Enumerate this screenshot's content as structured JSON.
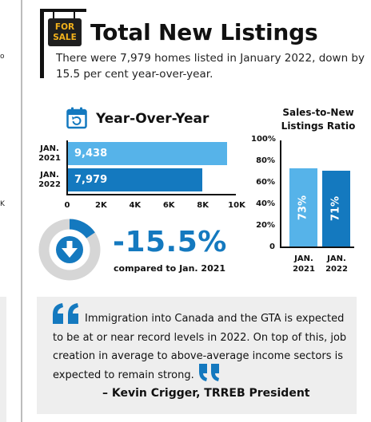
{
  "left_column": {
    "fragment_1": "o",
    "fragment_2": "K"
  },
  "header": {
    "sign_text_line1": "FOR",
    "sign_text_line2": "SALE",
    "title": "Total New Listings",
    "subtitle": "There were 7,979 homes listed in January 2022, down by 15.5 per cent year-over-year."
  },
  "yoy": {
    "title": "Year-Over-Year",
    "change_value": "-15.5%",
    "change_caption": "compared to Jan. 2021"
  },
  "colors": {
    "light_blue": "#56b3e9",
    "dark_blue": "#1479bf",
    "grey": "#d6d6d6"
  },
  "chart_data": [
    {
      "type": "bar",
      "orientation": "horizontal",
      "categories": [
        [
          "JAN.",
          "2021"
        ],
        [
          "JAN.",
          "2022"
        ]
      ],
      "values": [
        9438,
        7979
      ],
      "data_labels": [
        "9,438",
        "7,979"
      ],
      "xlim": [
        0,
        10000
      ],
      "x_ticks": [
        "0",
        "2K",
        "4K",
        "6K",
        "8K",
        "10K"
      ],
      "grid": false
    },
    {
      "type": "pie",
      "style": "donut",
      "values": [
        15.5,
        84.5
      ],
      "colors": [
        "#1479bf",
        "#d6d6d6"
      ]
    },
    {
      "type": "bar",
      "title_lines": [
        "Sales-to-New",
        "Listings Ratio"
      ],
      "categories": [
        [
          "JAN.",
          "2021"
        ],
        [
          "JAN.",
          "2022"
        ]
      ],
      "values": [
        73,
        71
      ],
      "data_labels": [
        "73%",
        "71%"
      ],
      "ylim": [
        0,
        100
      ],
      "y_ticks": [
        "0",
        "20%",
        "40%",
        "60%",
        "80%",
        "100%"
      ],
      "grid": false
    }
  ],
  "quote": {
    "text": "Immigration into Canada and the GTA is expected to be at or near record levels in 2022. On top of this, job creation in average to above-average income sectors is expected to remain strong.",
    "author": "– Kevin Crigger, TRREB President"
  }
}
